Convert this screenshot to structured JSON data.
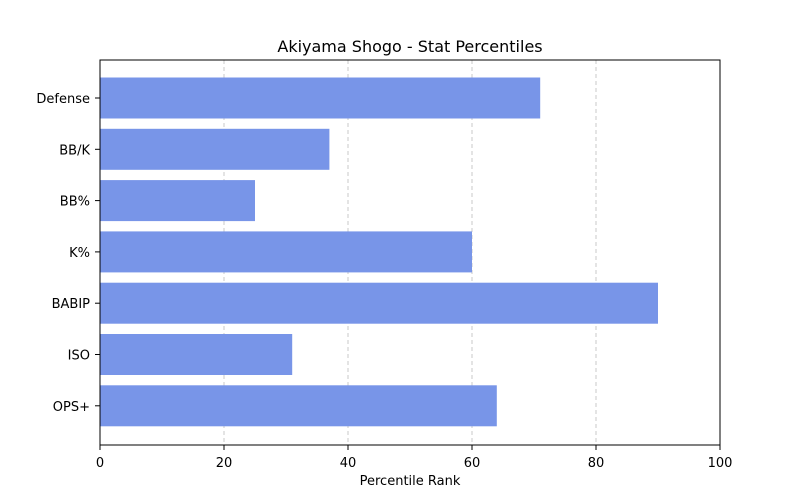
{
  "chart_data": {
    "type": "bar",
    "orientation": "horizontal",
    "title": "Akiyama Shogo - Stat Percentiles",
    "xlabel": "Percentile Rank",
    "ylabel": "",
    "categories": [
      "Defense",
      "BB/K",
      "BB%",
      "K%",
      "BABIP",
      "ISO",
      "OPS+"
    ],
    "values": [
      71,
      37,
      25,
      60,
      90,
      31,
      64
    ],
    "xlim": [
      0,
      100
    ],
    "xticks": [
      0,
      20,
      40,
      60,
      80,
      100
    ],
    "grid": "x-dashed",
    "bar_color": "#7895e8"
  }
}
